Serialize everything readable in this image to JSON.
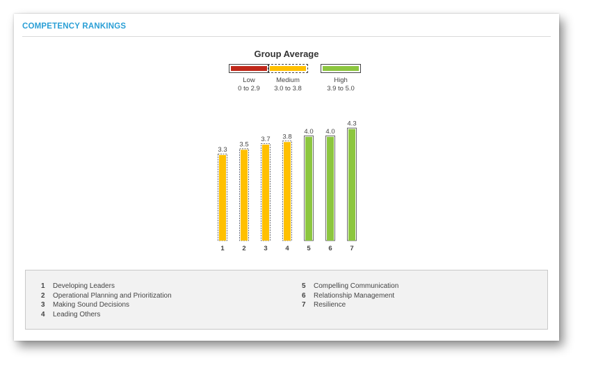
{
  "section_title": "COMPETENCY RANKINGS",
  "chart_data": {
    "type": "bar",
    "title": "Group Average",
    "categories": [
      "1",
      "2",
      "3",
      "4",
      "5",
      "6",
      "7"
    ],
    "values": [
      3.3,
      3.5,
      3.7,
      3.8,
      4.0,
      4.0,
      4.3
    ],
    "data_labels": [
      "3.3",
      "3.5",
      "3.7",
      "3.8",
      "4.0",
      "4.0",
      "4.3"
    ],
    "levels": [
      "Medium",
      "Medium",
      "Medium",
      "Medium",
      "High",
      "High",
      "High"
    ],
    "ylim": [
      0,
      5
    ],
    "grid": false,
    "legend": [
      {
        "name": "Low",
        "range": "0 to 2.9",
        "color": "#c0281a",
        "border": "solid"
      },
      {
        "name": "Medium",
        "range": "3.0 to 3.8",
        "color": "#ffc000",
        "border": "dashed"
      },
      {
        "name": "High",
        "range": "3.9 to 5.0",
        "color": "#8cc63f",
        "border": "solid"
      }
    ],
    "legend_position": "top-center"
  },
  "key": [
    {
      "num": "1",
      "label": "Developing Leaders"
    },
    {
      "num": "2",
      "label": "Operational Planning and Prioritization"
    },
    {
      "num": "3",
      "label": "Making Sound Decisions"
    },
    {
      "num": "4",
      "label": "Leading Others"
    },
    {
      "num": "5",
      "label": "Compelling Communication"
    },
    {
      "num": "6",
      "label": "Relationship Management"
    },
    {
      "num": "7",
      "label": "Resilience"
    }
  ]
}
